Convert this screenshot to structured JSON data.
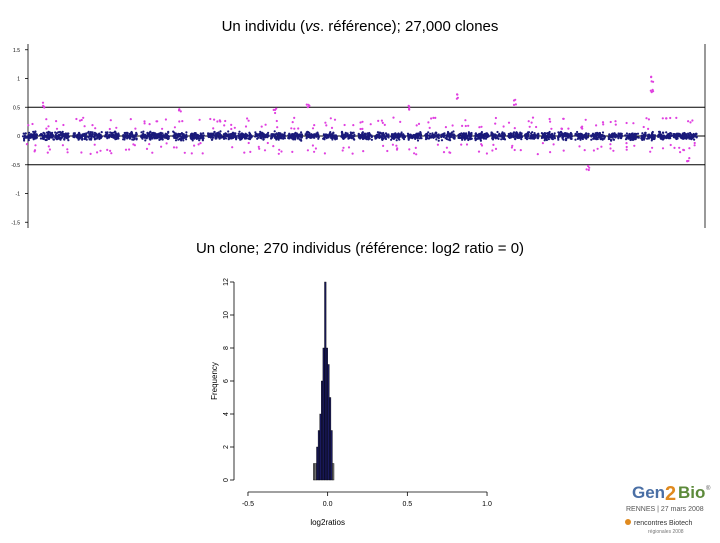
{
  "slide": {
    "title_top_pre": "Un individu (",
    "title_top_italic": "vs",
    "title_top_post": ". référence); 27,000 clones",
    "title_bottom": "Un clone; 270 individus (référence: log2 ratio = 0)"
  },
  "logo": {
    "brand_gen": "Gen",
    "brand_2": "2",
    "brand_bio": "Bio",
    "brand_reg": "®",
    "event_line": "RENNES | 27 mars 2008",
    "event_sub": "rencontres Biotech",
    "event_tag": "régionales 2008"
  },
  "chart_data": [
    {
      "type": "scatter",
      "title": "",
      "xlabel": "",
      "ylabel": "",
      "ylim": [
        -1.6,
        1.6
      ],
      "yticks": [
        -1.5,
        -1,
        -0.5,
        0,
        0.5,
        1,
        1.5
      ],
      "ytick_labels": [
        "-1.5",
        "-1",
        "-0.5",
        "0",
        "0.5",
        "1",
        "1.5"
      ],
      "reference_lines": [
        -0.5,
        0,
        0.5
      ],
      "x_clones": 27000,
      "series": [
        {
          "color": "#1a1a7a",
          "role": "normal"
        },
        {
          "color": "#e040e0",
          "role": "aberrant"
        }
      ],
      "chromosome_block_centers": [
        30,
        47,
        62,
        80,
        95,
        112,
        130,
        148,
        162,
        180,
        197,
        215,
        230,
        245,
        262,
        278,
        295,
        312,
        330,
        348,
        365,
        382,
        398,
        415,
        432,
        448,
        465,
        482,
        498,
        515,
        532,
        548,
        565,
        582,
        598,
        615,
        632,
        648,
        665,
        680,
        690
      ],
      "magenta_excursions": [
        {
          "x": 44,
          "y": 0.55
        },
        {
          "x": 180,
          "y": 0.45
        },
        {
          "x": 275,
          "y": 0.45
        },
        {
          "x": 308,
          "y": 0.55
        },
        {
          "x": 408,
          "y": 0.5
        },
        {
          "x": 458,
          "y": 0.7
        },
        {
          "x": 515,
          "y": 0.6
        },
        {
          "x": 588,
          "y": -0.55
        },
        {
          "x": 652,
          "y": 0.8
        },
        {
          "x": 652,
          "y": 1.0
        },
        {
          "x": 688,
          "y": -0.4
        }
      ]
    },
    {
      "type": "bar",
      "title": "",
      "xlabel": "log2ratios",
      "ylabel": "Frequency",
      "xlim": [
        -0.55,
        1.05
      ],
      "ylim": [
        0,
        12
      ],
      "xticks": [
        -0.5,
        0.0,
        0.5,
        1.0
      ],
      "xtick_labels": [
        "-0.5",
        "0.0",
        "0.5",
        "1.0"
      ],
      "yticks": [
        0,
        2,
        4,
        6,
        8,
        10,
        12
      ],
      "ytick_labels": [
        "0",
        "2",
        "4",
        "6",
        "8",
        "10",
        "12"
      ],
      "bin_width": 0.01,
      "bins_start": [
        -0.09,
        -0.08,
        -0.07,
        -0.06,
        -0.05,
        -0.04,
        -0.03,
        -0.02,
        -0.01,
        0.0,
        0.01,
        0.02,
        0.03
      ],
      "values": [
        1,
        1,
        2,
        3,
        4,
        6,
        8,
        12,
        8,
        7,
        5,
        3,
        1
      ]
    }
  ]
}
